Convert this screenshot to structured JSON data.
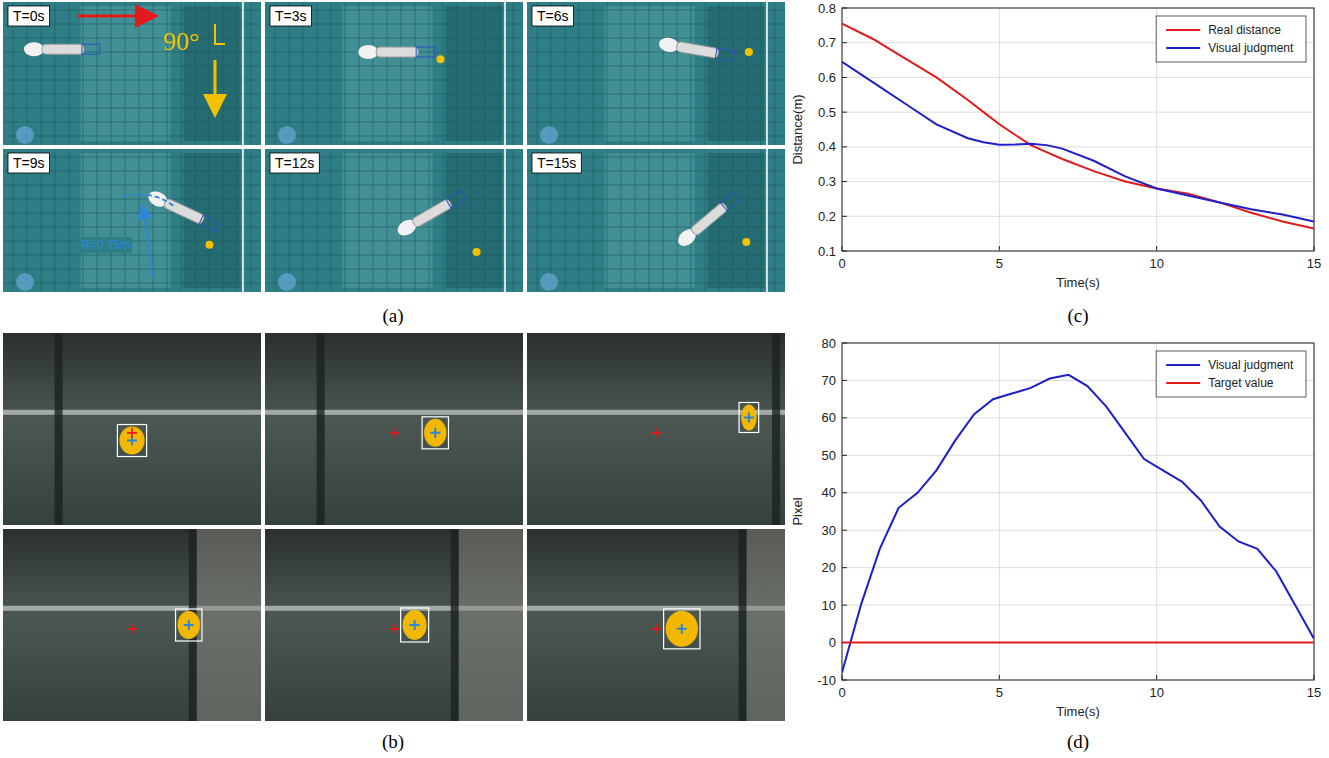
{
  "panels": {
    "a": {
      "label": "(a)",
      "frames": [
        "T=0s",
        "T=3s",
        "T=6s",
        "T=9s",
        "T=12s",
        "T=15s"
      ],
      "angle": "90°",
      "radius": "R=0.75m"
    },
    "b": {
      "label": "(b)"
    },
    "c": {
      "label": "(c)"
    },
    "d": {
      "label": "(d)"
    }
  },
  "chart_data": [
    {
      "type": "line",
      "xlabel": "Time(s)",
      "ylabel": "Distance(m)",
      "x": [
        0,
        1,
        2,
        3,
        4,
        4.5,
        5,
        5.5,
        6,
        6.5,
        7,
        8,
        9,
        10,
        11,
        12,
        13,
        14,
        15
      ],
      "series": [
        {
          "name": "Real distance",
          "color": "#e31a1c",
          "line_style": "solid",
          "values": [
            0.755,
            0.71,
            0.655,
            0.6,
            0.535,
            0.5,
            0.465,
            0.435,
            0.405,
            0.385,
            0.365,
            0.33,
            0.3,
            0.28,
            0.265,
            0.24,
            0.21,
            0.185,
            0.165
          ]
        },
        {
          "name": "Visual judgment",
          "color": "#1f1fc8",
          "line_style": "solid",
          "values": [
            0.645,
            0.585,
            0.525,
            0.465,
            0.425,
            0.413,
            0.406,
            0.407,
            0.409,
            0.405,
            0.395,
            0.36,
            0.315,
            0.28,
            0.26,
            0.24,
            0.22,
            0.205,
            0.185
          ]
        }
      ],
      "xlim": [
        0,
        15
      ],
      "xticks": [
        0,
        5,
        10,
        15
      ],
      "ylim": [
        0.1,
        0.8
      ],
      "yticks": [
        0.1,
        0.2,
        0.3,
        0.4,
        0.5,
        0.6,
        0.7,
        0.8
      ],
      "grid": true,
      "legend": "top-right"
    },
    {
      "type": "line",
      "xlabel": "Time(s)",
      "ylabel": "Pixel",
      "series": [
        {
          "name": "Visual judgment",
          "color": "#1f1fc8",
          "line_style": "solid",
          "x": [
            0,
            0.6,
            1.2,
            1.8,
            2.4,
            3,
            3.6,
            4.2,
            4.8,
            5.4,
            6,
            6.6,
            7.2,
            7.8,
            8.4,
            9,
            9.6,
            10.2,
            10.8,
            11.4,
            12,
            12.6,
            13.2,
            13.8,
            14.4,
            15
          ],
          "values": [
            -8,
            10,
            25,
            36,
            40,
            46,
            54,
            61,
            65,
            66.5,
            68,
            70.5,
            71.5,
            68.5,
            63,
            56,
            49,
            46,
            43,
            38,
            31,
            27,
            25,
            19,
            10,
            1
          ]
        },
        {
          "name": "Target value",
          "color": "#e31a1c",
          "line_style": "solid",
          "x": [
            0,
            15
          ],
          "values": [
            0,
            0
          ]
        }
      ],
      "xlim": [
        0,
        15
      ],
      "xticks": [
        0,
        5,
        10,
        15
      ],
      "ylim": [
        -10,
        80
      ],
      "yticks": [
        -10,
        0,
        10,
        20,
        30,
        40,
        50,
        60,
        70,
        80
      ],
      "grid": true,
      "legend": "top-right"
    }
  ]
}
